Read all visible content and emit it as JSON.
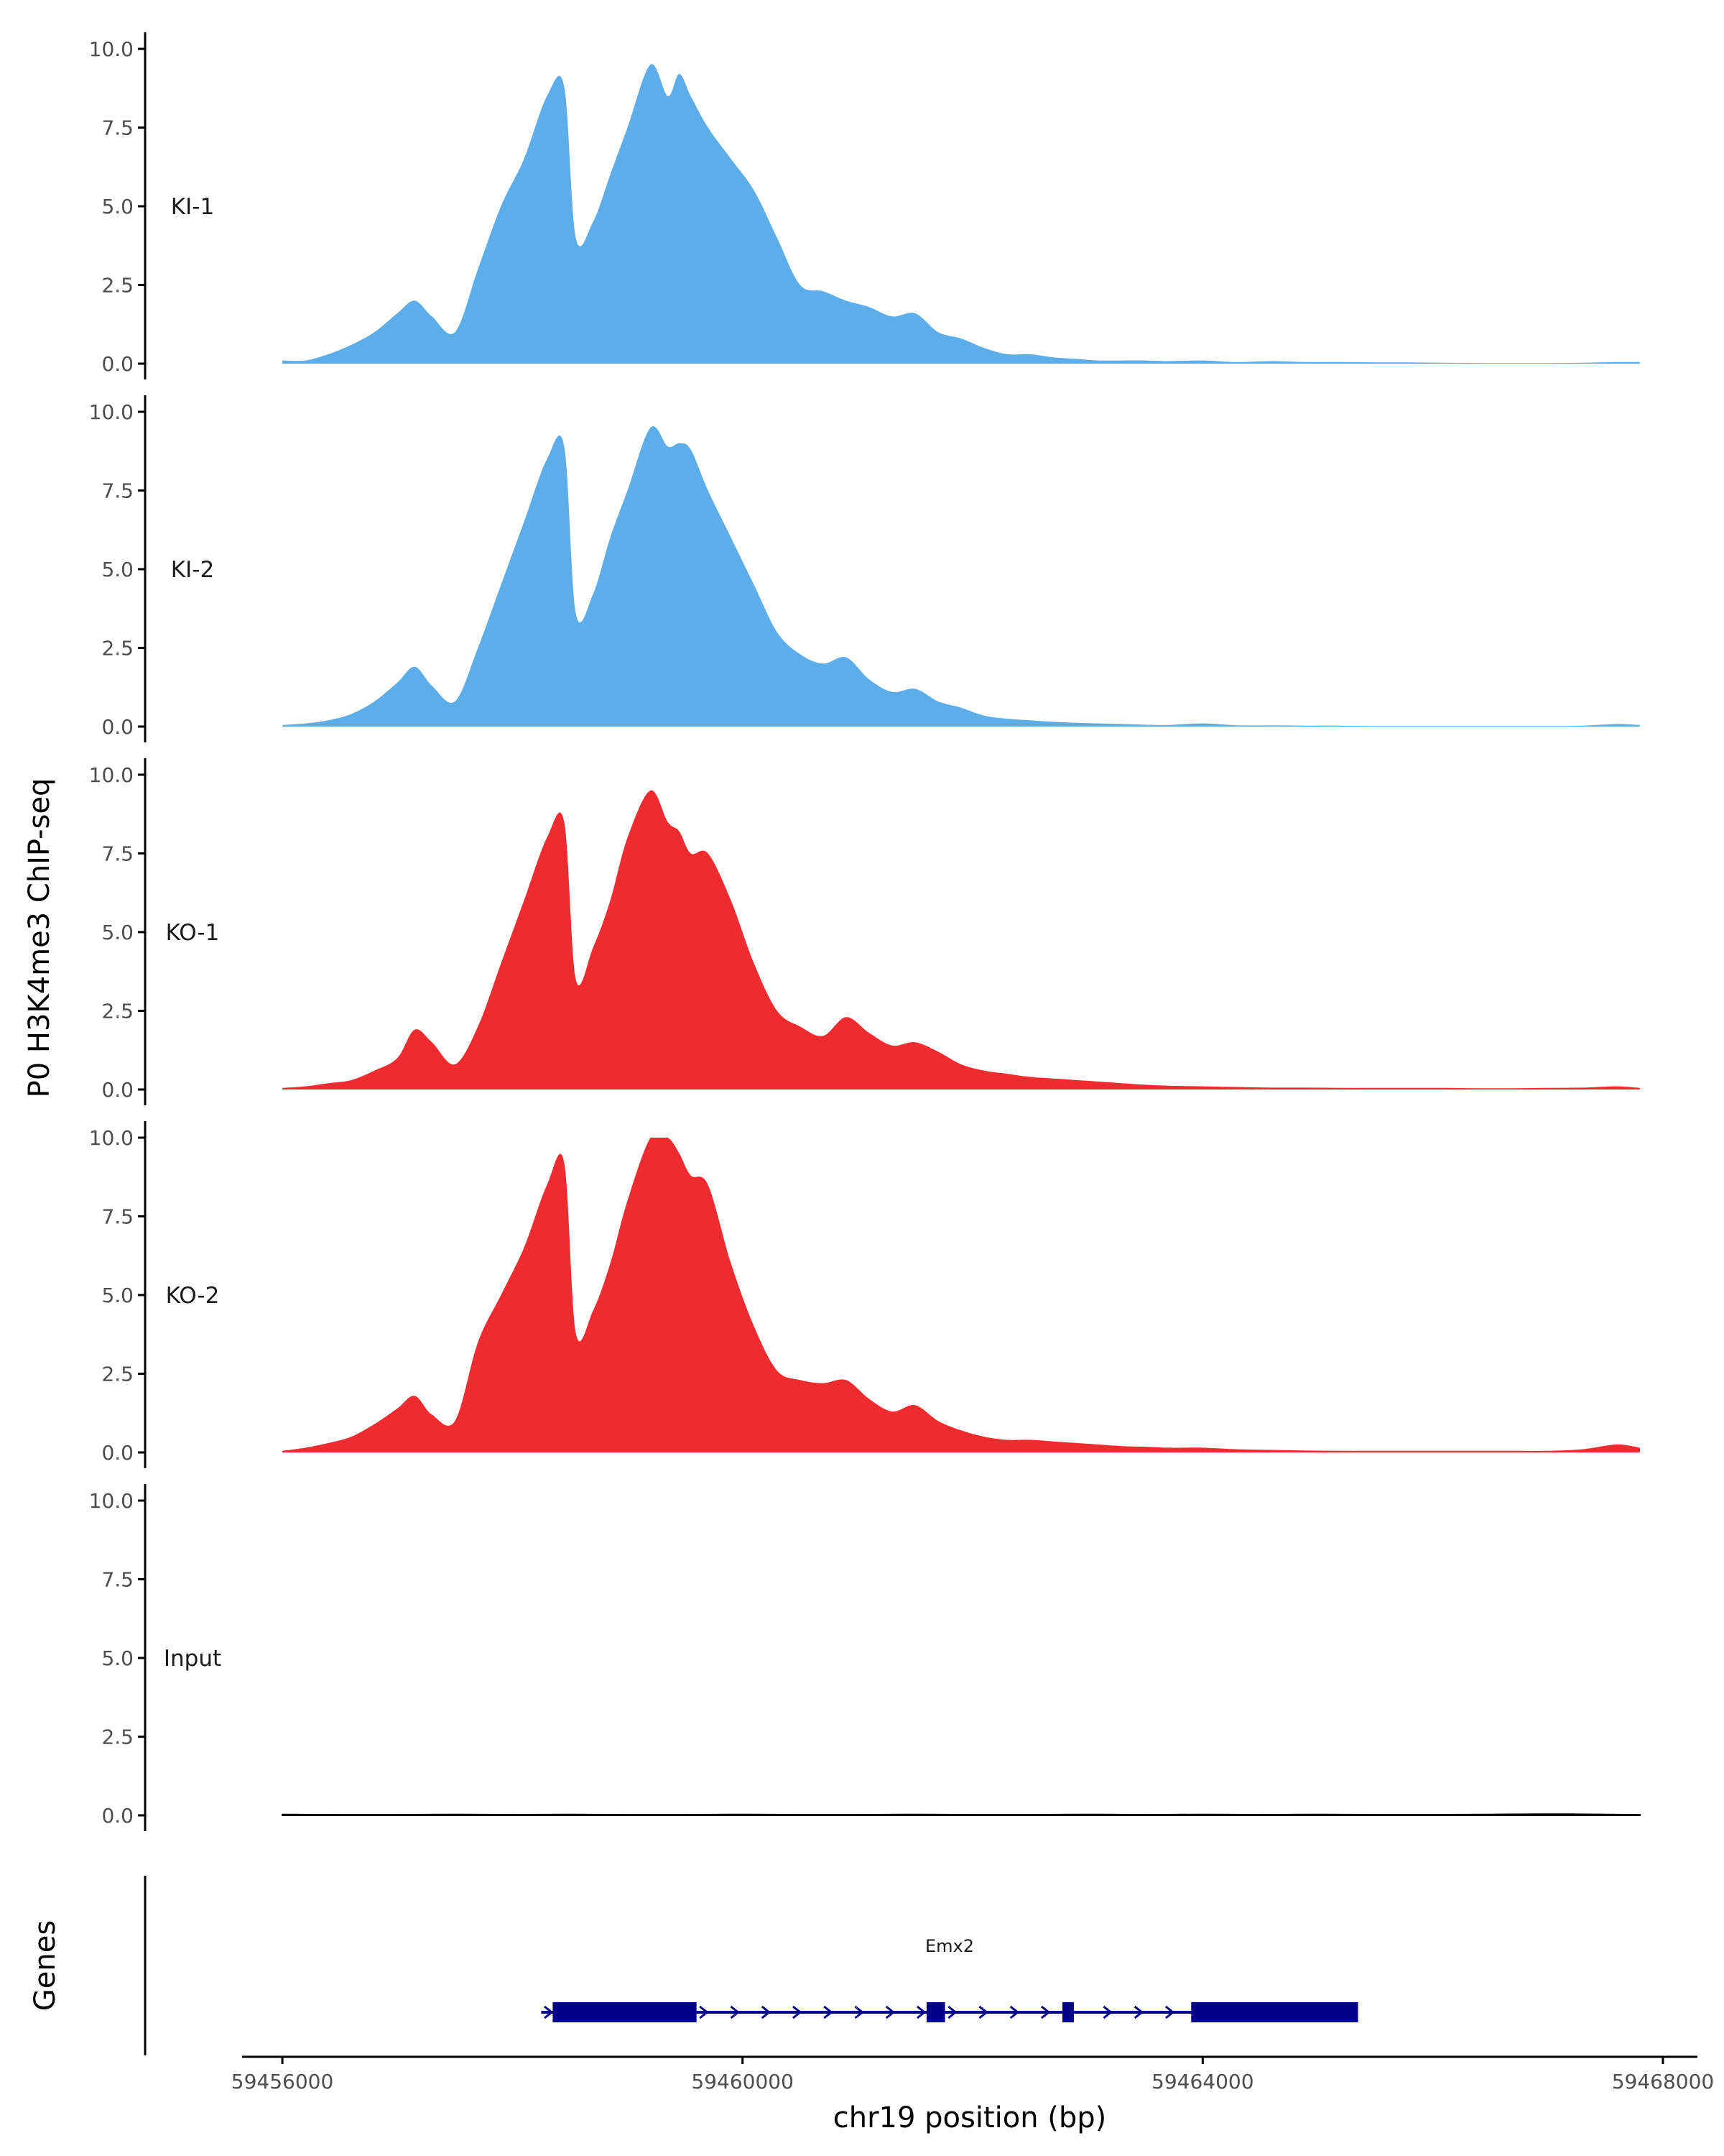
{
  "chart_data": {
    "type": "area",
    "ylabel": "P0 H3K4me3 ChIP-seq",
    "xlabel": "chr19 position (bp)",
    "xlim": [
      59455650,
      59468300
    ],
    "x_ticks": [
      59456000,
      59460000,
      59464000,
      59468000
    ],
    "x_tick_labels": [
      "59456000",
      "59460000",
      "59464000",
      "59468000"
    ],
    "ylim": [
      0,
      10
    ],
    "y_ticks": [
      0,
      2.5,
      5,
      7.5,
      10
    ],
    "y_tick_labels": [
      "0.0",
      "2.5",
      "5.0",
      "7.5",
      "10.0"
    ],
    "colors": {
      "KI": "#5dade8",
      "KO": "#ee2b2e",
      "Input": "#000000",
      "gene": "#00008b",
      "axis": "#000000"
    },
    "series": [
      {
        "name": "KI-1",
        "color": "#5dade8",
        "x": [
          59456000,
          59456200,
          59456400,
          59456600,
          59456800,
          59457000,
          59457150,
          59457300,
          59457500,
          59457700,
          59457900,
          59458100,
          59458300,
          59458450,
          59458550,
          59458700,
          59458850,
          59459000,
          59459200,
          59459350,
          59459450,
          59459550,
          59459700,
          59459900,
          59460100,
          59460300,
          59460500,
          59460700,
          59460900,
          59461100,
          59461300,
          59461500,
          59461700,
          59461900,
          59462100,
          59462300,
          59462500,
          59462700,
          59462900,
          59463100,
          59463300,
          59463500,
          59463700,
          59464000,
          59464300,
          59464600,
          59464900,
          59465200,
          59465500,
          59465800,
          59466100,
          59466400,
          59466700,
          59467000,
          59467300,
          59467600,
          59467800
        ],
        "values": [
          0.1,
          0.1,
          0.3,
          0.6,
          1.0,
          1.6,
          2.0,
          1.5,
          1.0,
          3.0,
          5.0,
          6.5,
          8.5,
          8.8,
          4.0,
          4.5,
          6.0,
          7.5,
          9.5,
          8.5,
          9.2,
          8.5,
          7.5,
          6.5,
          5.5,
          4.0,
          2.5,
          2.3,
          2.0,
          1.8,
          1.5,
          1.6,
          1.0,
          0.8,
          0.5,
          0.3,
          0.3,
          0.2,
          0.15,
          0.1,
          0.1,
          0.1,
          0.08,
          0.1,
          0.05,
          0.08,
          0.05,
          0.05,
          0.04,
          0.04,
          0.03,
          0.02,
          0.02,
          0.02,
          0.03,
          0.05,
          0.05
        ]
      },
      {
        "name": "KI-2",
        "color": "#5dade8",
        "x": [
          59456000,
          59456200,
          59456400,
          59456600,
          59456800,
          59457000,
          59457150,
          59457300,
          59457500,
          59457700,
          59457900,
          59458100,
          59458300,
          59458450,
          59458550,
          59458700,
          59458850,
          59459000,
          59459200,
          59459350,
          59459450,
          59459550,
          59459700,
          59459900,
          59460100,
          59460300,
          59460500,
          59460700,
          59460900,
          59461100,
          59461300,
          59461500,
          59461700,
          59461900,
          59462100,
          59462300,
          59462500,
          59462700,
          59462900,
          59463100,
          59463300,
          59463500,
          59463700,
          59464000,
          59464300,
          59464600,
          59464900,
          59465200,
          59465500,
          59465800,
          59466100,
          59466400,
          59466700,
          59467000,
          59467300,
          59467600,
          59467800
        ],
        "values": [
          0.05,
          0.1,
          0.2,
          0.4,
          0.8,
          1.4,
          1.9,
          1.3,
          0.8,
          2.5,
          4.5,
          6.5,
          8.5,
          8.9,
          3.6,
          4.2,
          6.0,
          7.5,
          9.5,
          8.9,
          9.0,
          8.8,
          7.5,
          6.0,
          4.5,
          3.0,
          2.3,
          2.0,
          2.2,
          1.5,
          1.1,
          1.2,
          0.8,
          0.6,
          0.35,
          0.25,
          0.2,
          0.15,
          0.12,
          0.1,
          0.08,
          0.06,
          0.05,
          0.1,
          0.04,
          0.04,
          0.03,
          0.03,
          0.02,
          0.02,
          0.02,
          0.02,
          0.02,
          0.02,
          0.03,
          0.08,
          0.05
        ]
      },
      {
        "name": "KO-1",
        "color": "#ee2b2e",
        "x": [
          59456000,
          59456200,
          59456400,
          59456600,
          59456800,
          59457000,
          59457150,
          59457300,
          59457500,
          59457700,
          59457900,
          59458100,
          59458300,
          59458450,
          59458550,
          59458700,
          59458850,
          59459000,
          59459200,
          59459350,
          59459450,
          59459550,
          59459700,
          59459900,
          59460100,
          59460300,
          59460500,
          59460700,
          59460900,
          59461100,
          59461300,
          59461500,
          59461700,
          59461900,
          59462100,
          59462300,
          59462500,
          59462700,
          59462900,
          59463100,
          59463300,
          59463500,
          59463700,
          59464000,
          59464300,
          59464600,
          59464900,
          59465200,
          59465500,
          59465800,
          59466100,
          59466400,
          59466700,
          59467000,
          59467300,
          59467600,
          59467800
        ],
        "values": [
          0.05,
          0.1,
          0.2,
          0.3,
          0.6,
          1.0,
          1.9,
          1.5,
          0.8,
          2.0,
          4.0,
          6.0,
          8.0,
          8.5,
          3.5,
          4.5,
          6.0,
          8.0,
          9.5,
          8.5,
          8.2,
          7.5,
          7.5,
          6.0,
          4.0,
          2.5,
          2.0,
          1.7,
          2.3,
          1.8,
          1.4,
          1.5,
          1.2,
          0.8,
          0.6,
          0.5,
          0.4,
          0.35,
          0.3,
          0.25,
          0.2,
          0.15,
          0.12,
          0.1,
          0.08,
          0.06,
          0.06,
          0.05,
          0.05,
          0.05,
          0.05,
          0.04,
          0.04,
          0.05,
          0.06,
          0.1,
          0.05
        ]
      },
      {
        "name": "KO-2",
        "color": "#ee2b2e",
        "x": [
          59456000,
          59456200,
          59456400,
          59456600,
          59456800,
          59457000,
          59457150,
          59457300,
          59457500,
          59457700,
          59457900,
          59458100,
          59458300,
          59458450,
          59458550,
          59458700,
          59458850,
          59459000,
          59459200,
          59459350,
          59459450,
          59459550,
          59459700,
          59459900,
          59460100,
          59460300,
          59460500,
          59460700,
          59460900,
          59461100,
          59461300,
          59461500,
          59461700,
          59461900,
          59462100,
          59462300,
          59462500,
          59462700,
          59462900,
          59463100,
          59463300,
          59463500,
          59463700,
          59464000,
          59464300,
          59464600,
          59464900,
          59465200,
          59465500,
          59465800,
          59466100,
          59466400,
          59466700,
          59467000,
          59467300,
          59467600,
          59467800
        ],
        "values": [
          0.05,
          0.15,
          0.3,
          0.5,
          0.9,
          1.4,
          1.8,
          1.2,
          1.0,
          3.5,
          5.0,
          6.5,
          8.5,
          9.2,
          3.8,
          4.5,
          6.0,
          8.0,
          10.0,
          10.0,
          9.5,
          8.8,
          8.5,
          6.0,
          4.0,
          2.6,
          2.3,
          2.2,
          2.3,
          1.7,
          1.3,
          1.5,
          1.0,
          0.7,
          0.5,
          0.4,
          0.4,
          0.35,
          0.3,
          0.25,
          0.2,
          0.18,
          0.15,
          0.15,
          0.1,
          0.08,
          0.06,
          0.05,
          0.05,
          0.05,
          0.05,
          0.05,
          0.05,
          0.05,
          0.1,
          0.25,
          0.15
        ]
      },
      {
        "name": "Input",
        "color": "#000000",
        "x": [
          59456000,
          59456500,
          59457000,
          59457500,
          59458000,
          59458500,
          59459000,
          59459500,
          59460000,
          59460500,
          59461000,
          59461500,
          59462000,
          59462500,
          59463000,
          59463500,
          59464000,
          59464500,
          59465000,
          59465500,
          59466000,
          59466500,
          59467000,
          59467500,
          59467800
        ],
        "values": [
          0.03,
          0.02,
          0.02,
          0.03,
          0.02,
          0.03,
          0.02,
          0.02,
          0.03,
          0.02,
          0.02,
          0.03,
          0.02,
          0.02,
          0.03,
          0.02,
          0.03,
          0.02,
          0.03,
          0.02,
          0.02,
          0.03,
          0.04,
          0.03,
          0.02
        ]
      }
    ],
    "genes": [
      {
        "name": "Emx2",
        "strand": "+",
        "start": 59458250,
        "end": 59465350,
        "exons": [
          [
            59458350,
            59459600
          ],
          [
            59461600,
            59461760
          ],
          [
            59462780,
            59462880
          ],
          [
            59463900,
            59465350
          ]
        ]
      }
    ],
    "gene_track_label": "Genes"
  }
}
